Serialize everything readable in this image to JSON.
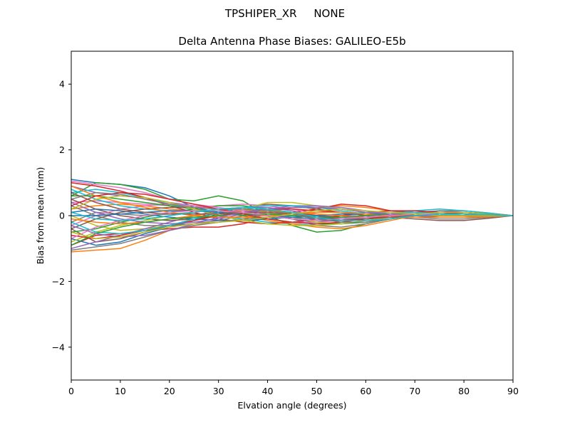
{
  "chart_data": {
    "type": "line",
    "suptitle": "TPSHIPER_XR     NONE",
    "title": "Delta Antenna Phase Biases: GALILEO-E5b",
    "xlabel": "Elvation angle (degrees)",
    "ylabel": "Bias from mean (mm)",
    "xlim": [
      0,
      90
    ],
    "ylim": [
      -5,
      5
    ],
    "xticks": [
      0,
      10,
      20,
      30,
      40,
      50,
      60,
      70,
      80,
      90
    ],
    "xtick_labels": [
      "0",
      "10",
      "20",
      "30",
      "40",
      "50",
      "60",
      "70",
      "80",
      "90"
    ],
    "yticks": [
      -4,
      -2,
      0,
      2,
      4
    ],
    "ytick_labels": [
      "−4",
      "−2",
      "0",
      "2",
      "4"
    ],
    "grid": false,
    "x": [
      0,
      5,
      10,
      15,
      20,
      25,
      30,
      35,
      40,
      45,
      50,
      55,
      60,
      65,
      70,
      75,
      80,
      85,
      90
    ],
    "series_colors": [
      "#1f77b4",
      "#ff7f0e",
      "#2ca02c",
      "#d62728",
      "#9467bd",
      "#8c564b",
      "#e377c2",
      "#7f7f7f",
      "#bcbd22",
      "#17becf"
    ],
    "series": [
      {
        "values": [
          1.1,
          1.0,
          0.95,
          0.85,
          0.6,
          0.25,
          0.1,
          0.05,
          0.0,
          -0.1,
          -0.2,
          -0.1,
          0.0,
          0.05,
          0.1,
          0.05,
          0.0,
          -0.02,
          0.0
        ]
      },
      {
        "values": [
          -1.1,
          -1.05,
          -1.0,
          -0.75,
          -0.45,
          -0.3,
          -0.2,
          -0.1,
          0.1,
          0.25,
          0.25,
          0.3,
          0.25,
          0.15,
          0.1,
          0.05,
          0.05,
          0.03,
          0.0
        ]
      },
      {
        "values": [
          0.6,
          1.0,
          0.95,
          0.8,
          0.5,
          0.45,
          0.6,
          0.45,
          0.0,
          -0.3,
          -0.5,
          -0.45,
          -0.25,
          -0.1,
          0.05,
          0.1,
          0.1,
          0.05,
          0.0
        ]
      },
      {
        "values": [
          -0.9,
          -0.6,
          -0.55,
          -0.45,
          -0.4,
          -0.35,
          -0.35,
          -0.25,
          -0.05,
          0.1,
          0.2,
          0.35,
          0.3,
          0.15,
          0.1,
          0.1,
          0.05,
          0.03,
          0.0
        ]
      },
      {
        "values": [
          0.9,
          0.7,
          0.6,
          0.55,
          0.4,
          0.3,
          0.2,
          0.2,
          0.1,
          0.0,
          -0.05,
          0.0,
          0.05,
          0.05,
          0.1,
          0.15,
          0.1,
          0.05,
          0.0
        ]
      },
      {
        "values": [
          -0.4,
          -0.8,
          -0.7,
          -0.5,
          -0.3,
          -0.1,
          0.1,
          0.25,
          0.35,
          0.3,
          0.2,
          0.1,
          0.0,
          -0.05,
          -0.1,
          -0.15,
          -0.15,
          -0.08,
          0.0
        ]
      },
      {
        "values": [
          0.4,
          0.45,
          0.4,
          0.35,
          0.3,
          0.25,
          0.3,
          0.35,
          0.3,
          0.2,
          0.05,
          -0.05,
          -0.05,
          -0.05,
          0.0,
          0.05,
          0.05,
          0.03,
          0.0
        ]
      },
      {
        "values": [
          -0.2,
          0.1,
          0.05,
          0.0,
          0.05,
          0.1,
          0.2,
          0.25,
          0.1,
          -0.1,
          -0.3,
          -0.35,
          -0.25,
          -0.1,
          0.05,
          0.15,
          0.15,
          0.08,
          0.0
        ]
      },
      {
        "values": [
          0.0,
          -0.3,
          -0.45,
          -0.4,
          -0.3,
          -0.15,
          0.05,
          0.2,
          0.4,
          0.4,
          0.3,
          0.2,
          0.1,
          0.05,
          0.0,
          -0.05,
          -0.05,
          -0.02,
          0.0
        ]
      },
      {
        "values": [
          0.7,
          0.8,
          0.7,
          0.55,
          0.35,
          0.2,
          0.0,
          -0.1,
          -0.2,
          -0.25,
          -0.3,
          -0.2,
          -0.05,
          0.05,
          0.15,
          0.2,
          0.15,
          0.08,
          0.0
        ]
      },
      {
        "values": [
          -0.7,
          -0.9,
          -0.8,
          -0.55,
          -0.35,
          -0.15,
          0.05,
          0.15,
          0.2,
          0.1,
          0.0,
          -0.05,
          0.0,
          0.05,
          0.1,
          0.1,
          0.05,
          0.02,
          0.0
        ]
      },
      {
        "values": [
          0.2,
          0.3,
          0.35,
          0.3,
          0.2,
          0.15,
          0.1,
          0.0,
          -0.15,
          -0.25,
          -0.35,
          -0.4,
          -0.3,
          -0.15,
          0.0,
          0.1,
          0.1,
          0.05,
          0.0
        ]
      },
      {
        "values": [
          -0.5,
          -0.4,
          -0.2,
          -0.05,
          0.1,
          0.2,
          0.3,
          0.3,
          0.2,
          0.05,
          -0.1,
          -0.15,
          -0.1,
          -0.05,
          0.0,
          0.0,
          0.0,
          0.0,
          0.0
        ]
      },
      {
        "values": [
          1.0,
          0.9,
          0.75,
          0.55,
          0.3,
          0.1,
          -0.1,
          -0.2,
          -0.25,
          -0.2,
          -0.1,
          0.0,
          0.1,
          0.15,
          0.15,
          0.1,
          0.05,
          0.03,
          0.0
        ]
      },
      {
        "values": [
          -1.0,
          -0.8,
          -0.6,
          -0.4,
          -0.2,
          0.0,
          0.15,
          0.25,
          0.25,
          0.15,
          0.0,
          -0.1,
          -0.1,
          -0.05,
          0.0,
          0.0,
          0.0,
          0.0,
          0.0
        ]
      },
      {
        "values": [
          0.5,
          0.2,
          0.0,
          -0.1,
          -0.15,
          -0.1,
          0.0,
          0.1,
          0.15,
          0.1,
          0.0,
          -0.1,
          -0.15,
          -0.1,
          0.0,
          0.1,
          0.1,
          0.05,
          0.0
        ]
      },
      {
        "values": [
          -0.3,
          0.0,
          0.2,
          0.3,
          0.35,
          0.3,
          0.2,
          0.05,
          -0.1,
          -0.2,
          -0.2,
          -0.15,
          -0.05,
          0.05,
          0.1,
          0.05,
          0.0,
          0.0,
          0.0
        ]
      },
      {
        "values": [
          0.3,
          0.0,
          -0.2,
          -0.3,
          -0.3,
          -0.25,
          -0.15,
          0.0,
          0.15,
          0.25,
          0.25,
          0.2,
          0.1,
          0.0,
          -0.05,
          -0.1,
          -0.1,
          -0.05,
          0.0
        ]
      },
      {
        "values": [
          -0.8,
          -0.5,
          -0.3,
          -0.15,
          0.0,
          0.1,
          0.2,
          0.2,
          0.1,
          -0.05,
          -0.2,
          -0.25,
          -0.2,
          -0.1,
          0.0,
          0.05,
          0.05,
          0.03,
          0.0
        ]
      },
      {
        "values": [
          0.8,
          0.5,
          0.3,
          0.2,
          0.15,
          0.15,
          0.1,
          0.05,
          0.0,
          0.0,
          0.0,
          0.05,
          0.1,
          0.1,
          0.1,
          0.05,
          0.0,
          0.0,
          0.0
        ]
      },
      {
        "values": [
          0.1,
          0.2,
          0.15,
          0.05,
          -0.05,
          -0.1,
          -0.15,
          -0.15,
          -0.1,
          -0.05,
          0.0,
          0.05,
          0.05,
          0.05,
          0.05,
          0.05,
          0.05,
          0.03,
          0.0
        ]
      },
      {
        "values": [
          -0.1,
          -0.2,
          -0.25,
          -0.2,
          -0.1,
          0.0,
          0.1,
          0.15,
          0.15,
          0.1,
          0.05,
          0.0,
          -0.05,
          -0.05,
          -0.05,
          -0.05,
          -0.05,
          -0.03,
          0.0
        ]
      },
      {
        "values": [
          0.6,
          0.6,
          0.5,
          0.4,
          0.3,
          0.2,
          0.1,
          0.0,
          -0.1,
          -0.2,
          -0.25,
          -0.25,
          -0.2,
          -0.1,
          0.0,
          0.05,
          0.05,
          0.03,
          0.0
        ]
      },
      {
        "values": [
          -0.6,
          -0.7,
          -0.6,
          -0.45,
          -0.3,
          -0.15,
          0.0,
          0.1,
          0.2,
          0.2,
          0.15,
          0.1,
          0.05,
          0.0,
          0.0,
          0.0,
          0.0,
          0.0,
          0.0
        ]
      },
      {
        "values": [
          0.4,
          0.1,
          -0.1,
          -0.2,
          -0.25,
          -0.2,
          -0.1,
          0.05,
          0.2,
          0.3,
          0.3,
          0.25,
          0.15,
          0.05,
          0.0,
          -0.05,
          -0.05,
          -0.03,
          0.0
        ]
      },
      {
        "values": [
          -0.4,
          -0.1,
          0.1,
          0.2,
          0.25,
          0.25,
          0.2,
          0.1,
          0.0,
          -0.1,
          -0.15,
          -0.15,
          -0.1,
          -0.05,
          0.0,
          0.0,
          0.0,
          0.0,
          0.0
        ]
      },
      {
        "values": [
          1.05,
          0.95,
          0.85,
          0.7,
          0.5,
          0.35,
          0.25,
          0.15,
          0.05,
          -0.05,
          -0.1,
          -0.05,
          0.0,
          0.05,
          0.05,
          0.05,
          0.05,
          0.03,
          0.0
        ]
      },
      {
        "values": [
          -1.05,
          -0.95,
          -0.85,
          -0.65,
          -0.45,
          -0.3,
          -0.2,
          -0.1,
          -0.05,
          -0.05,
          -0.1,
          -0.1,
          -0.05,
          0.0,
          0.05,
          0.05,
          0.05,
          0.03,
          0.0
        ]
      },
      {
        "values": [
          0.2,
          0.5,
          0.6,
          0.55,
          0.4,
          0.2,
          0.0,
          -0.15,
          -0.25,
          -0.3,
          -0.3,
          -0.25,
          -0.15,
          -0.05,
          0.05,
          0.1,
          0.1,
          0.05,
          0.0
        ]
      },
      {
        "values": [
          -0.2,
          -0.5,
          -0.55,
          -0.45,
          -0.3,
          -0.1,
          0.1,
          0.25,
          0.3,
          0.3,
          0.25,
          0.15,
          0.05,
          0.0,
          -0.05,
          -0.05,
          -0.05,
          -0.03,
          0.0
        ]
      },
      {
        "values": [
          0.0,
          0.0,
          0.05,
          0.1,
          0.15,
          0.15,
          0.1,
          0.05,
          0.0,
          -0.05,
          -0.1,
          -0.1,
          -0.05,
          0.0,
          0.05,
          0.05,
          0.05,
          0.03,
          0.0
        ]
      },
      {
        "values": [
          0.9,
          0.6,
          0.4,
          0.25,
          0.1,
          0.0,
          -0.05,
          -0.05,
          0.0,
          0.05,
          0.1,
          0.1,
          0.05,
          0.0,
          -0.05,
          -0.05,
          -0.05,
          -0.03,
          0.0
        ]
      },
      {
        "values": [
          -0.9,
          -0.55,
          -0.35,
          -0.2,
          -0.1,
          -0.05,
          0.0,
          0.05,
          0.05,
          0.0,
          -0.05,
          -0.05,
          0.0,
          0.05,
          0.05,
          0.05,
          0.05,
          0.03,
          0.0
        ]
      },
      {
        "values": [
          0.3,
          0.6,
          0.7,
          0.65,
          0.5,
          0.35,
          0.2,
          0.05,
          -0.1,
          -0.2,
          -0.25,
          -0.2,
          -0.1,
          0.0,
          0.05,
          0.05,
          0.05,
          0.03,
          0.0
        ]
      },
      {
        "values": [
          -0.3,
          -0.55,
          -0.65,
          -0.6,
          -0.45,
          -0.25,
          -0.05,
          0.1,
          0.2,
          0.25,
          0.25,
          0.2,
          0.1,
          0.05,
          0.0,
          0.0,
          0.0,
          0.0,
          0.0
        ]
      },
      {
        "values": [
          0.7,
          0.4,
          0.2,
          0.1,
          0.05,
          0.05,
          0.05,
          0.1,
          0.1,
          0.05,
          -0.05,
          -0.1,
          -0.1,
          -0.05,
          0.0,
          0.05,
          0.05,
          0.03,
          0.0
        ]
      },
      {
        "values": [
          -0.7,
          -0.35,
          -0.15,
          0.0,
          0.1,
          0.15,
          0.15,
          0.1,
          0.0,
          -0.1,
          -0.15,
          -0.1,
          -0.05,
          0.0,
          0.05,
          0.05,
          0.05,
          0.03,
          0.0
        ]
      },
      {
        "values": [
          0.5,
          0.7,
          0.65,
          0.5,
          0.35,
          0.25,
          0.2,
          0.2,
          0.15,
          0.05,
          -0.1,
          -0.2,
          -0.2,
          -0.1,
          0.0,
          0.05,
          0.05,
          0.03,
          0.0
        ]
      },
      {
        "values": [
          -0.5,
          -0.7,
          -0.65,
          -0.5,
          -0.35,
          -0.25,
          -0.2,
          -0.15,
          -0.05,
          0.05,
          0.15,
          0.2,
          0.15,
          0.1,
          0.05,
          0.0,
          0.0,
          0.0,
          0.0
        ]
      },
      {
        "values": [
          0.1,
          -0.1,
          -0.15,
          -0.1,
          0.0,
          0.1,
          0.2,
          0.25,
          0.2,
          0.1,
          -0.05,
          -0.15,
          -0.15,
          -0.1,
          0.0,
          0.05,
          0.05,
          0.03,
          0.0
        ]
      }
    ]
  }
}
